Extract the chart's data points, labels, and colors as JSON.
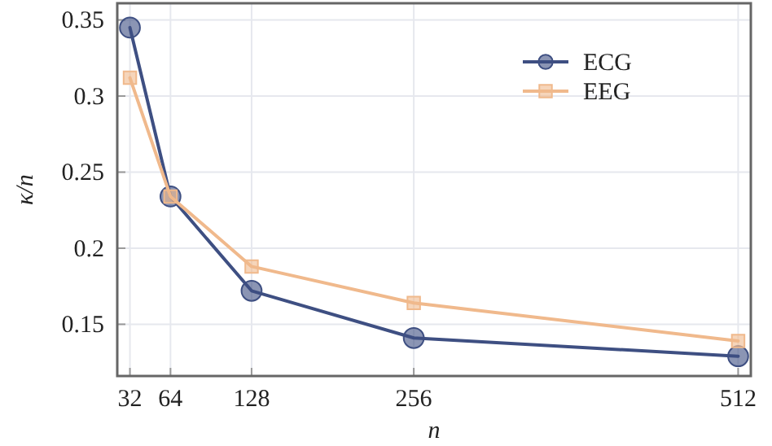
{
  "chart_data": {
    "type": "line",
    "xlabel": "n",
    "ylabel": "κ/n",
    "x": [
      32,
      64,
      128,
      256,
      512
    ],
    "series": [
      {
        "name": "ECG",
        "color": "#3e4f82",
        "marker": "circle",
        "values": [
          0.345,
          0.234,
          0.172,
          0.141,
          0.129
        ]
      },
      {
        "name": "EEG",
        "color": "#f0b98c",
        "marker": "square",
        "values": [
          0.312,
          0.234,
          0.188,
          0.164,
          0.139
        ]
      }
    ],
    "xlim": [
      22,
      522
    ],
    "xticks": [
      32,
      64,
      128,
      256,
      512
    ],
    "ylim": [
      0.116,
      0.361
    ],
    "yticks": [
      {
        "value": 0.15,
        "label": "0.15"
      },
      {
        "value": 0.2,
        "label": "0.2"
      },
      {
        "value": 0.25,
        "label": "0.25"
      },
      {
        "value": 0.3,
        "label": "0.3"
      },
      {
        "value": 0.35,
        "label": "0.35"
      }
    ],
    "grid": true,
    "legend": "top right",
    "line_style": "solid"
  }
}
